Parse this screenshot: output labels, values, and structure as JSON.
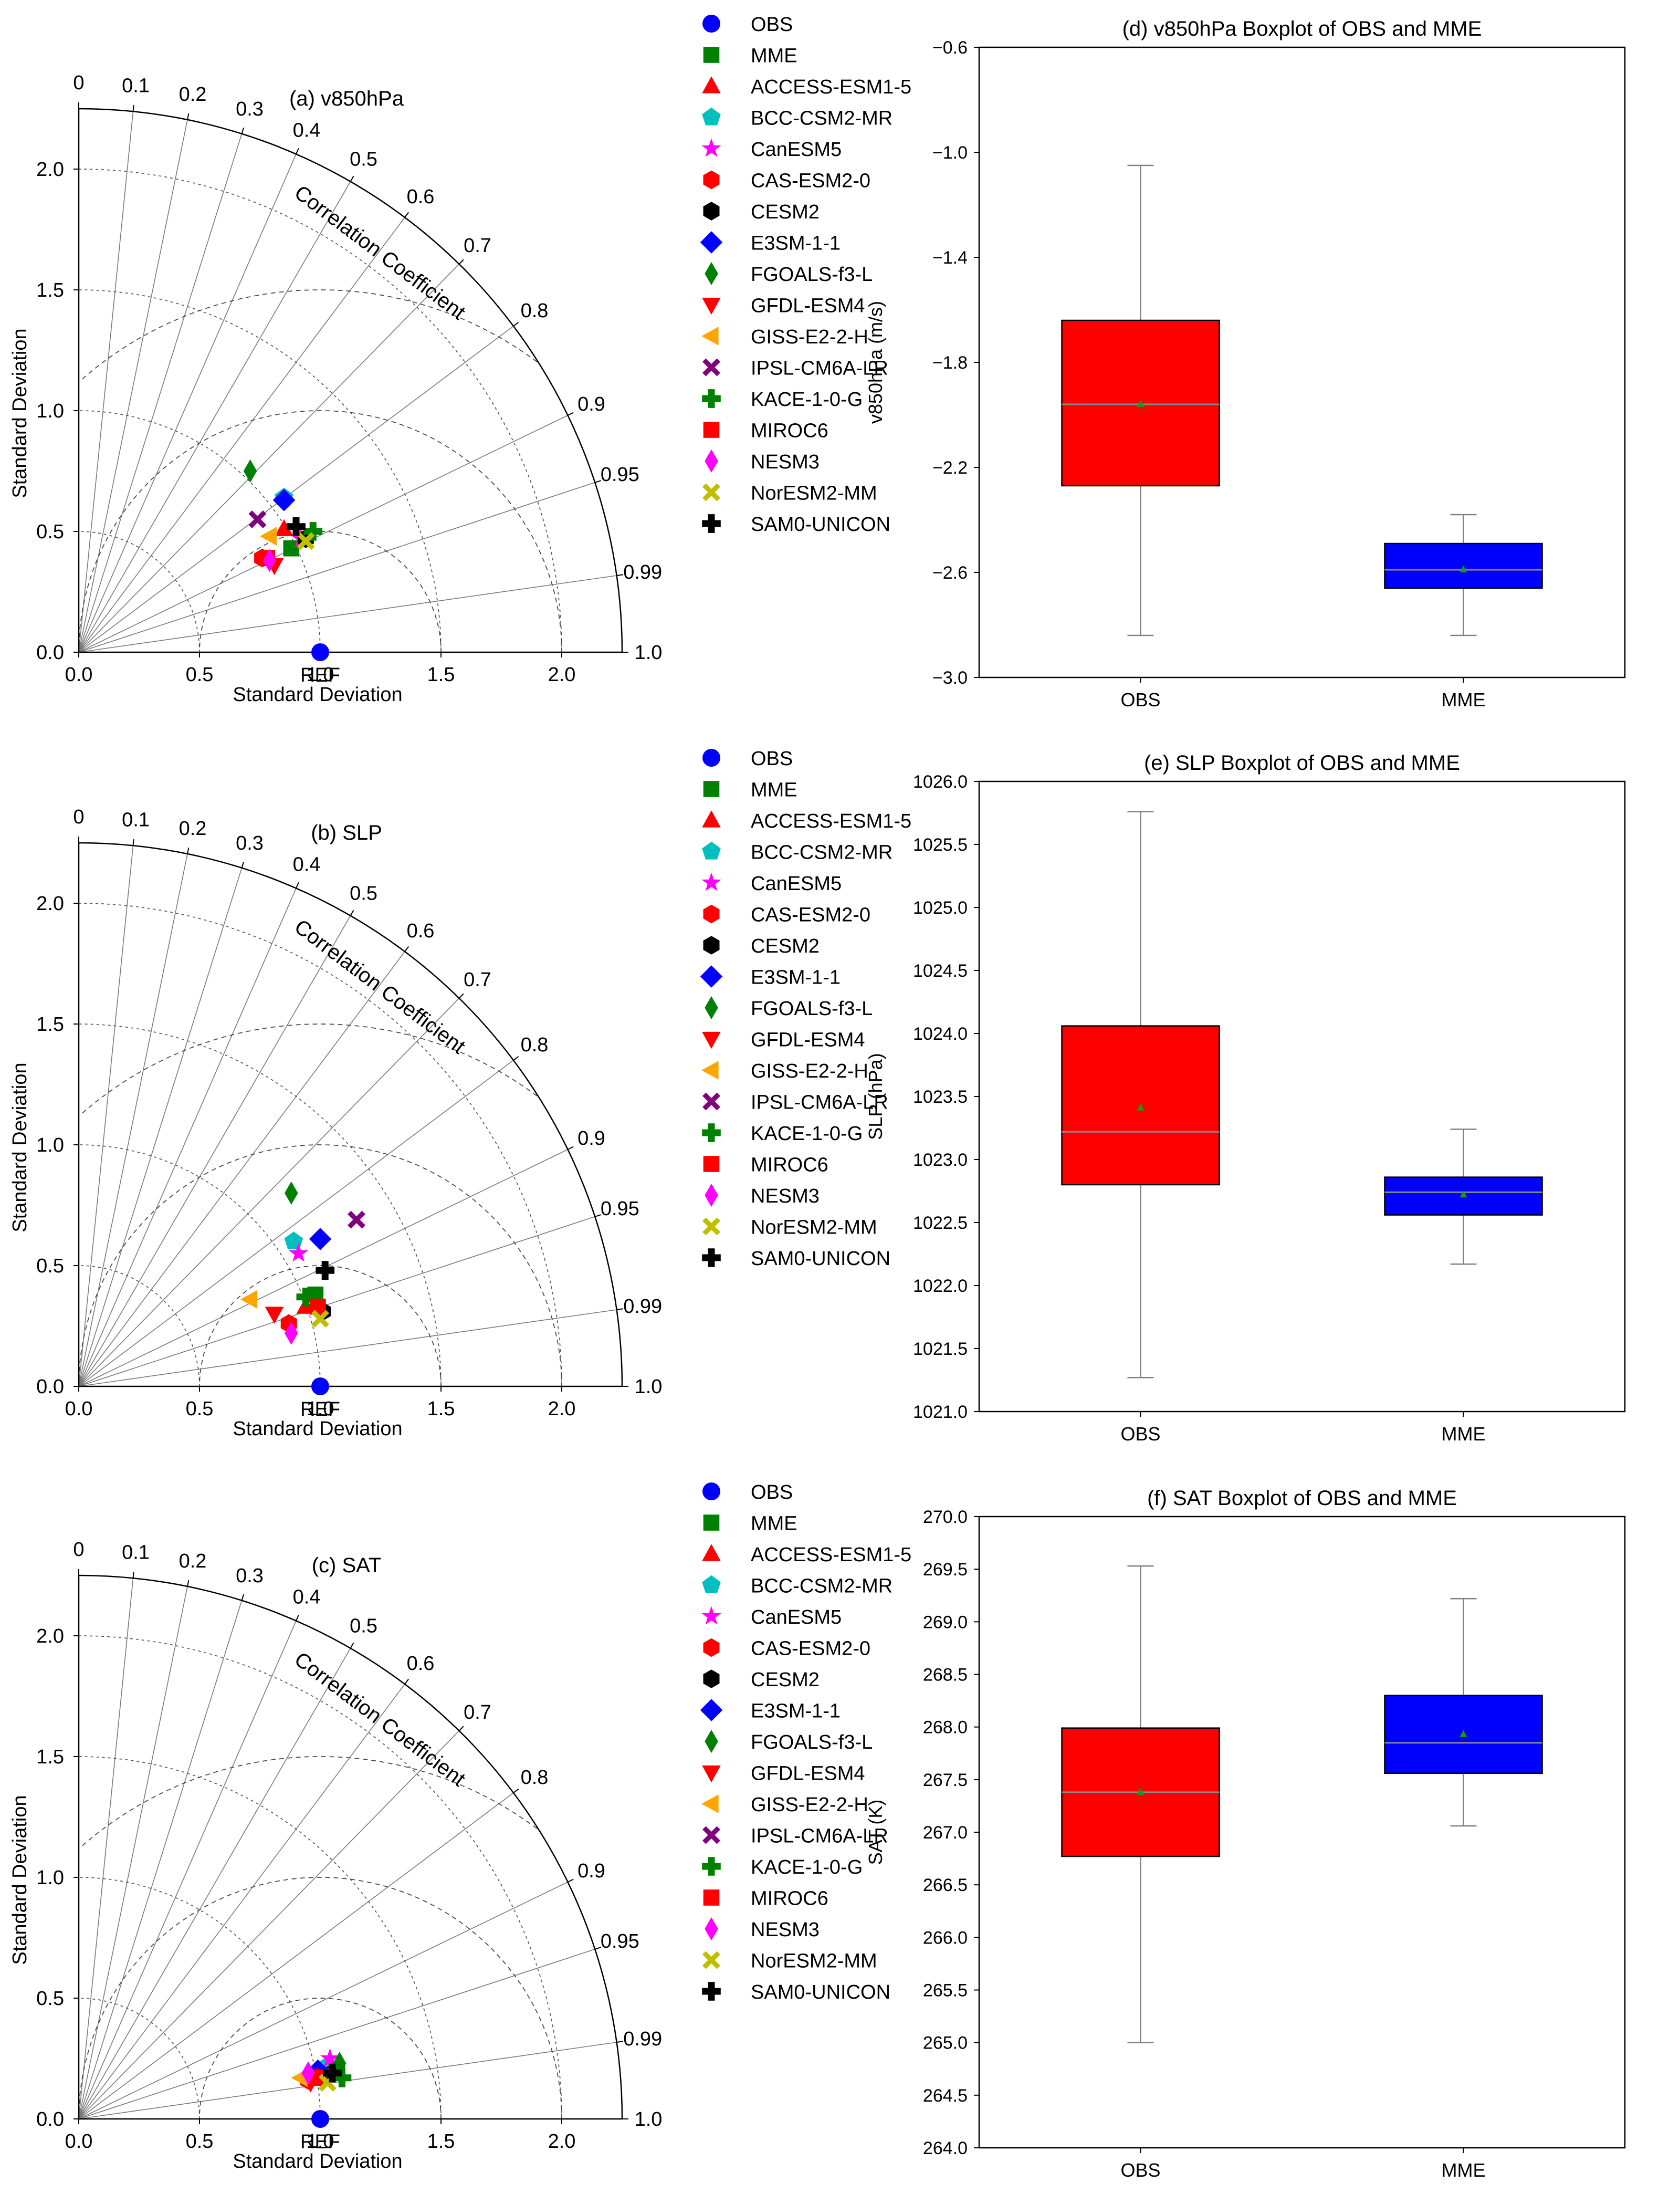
{
  "chart_data": {
    "taylor_common": {
      "axis_label": "Standard Deviation",
      "ref_label": "REF",
      "corr_title": "Correlation Coefficient",
      "sd_ticks": [
        "0.0",
        "0.5",
        "1.0",
        "1.5",
        "2.0"
      ],
      "sd_tick_values": [
        0,
        0.5,
        1.0,
        1.5,
        2.0
      ],
      "corr_ticks": [
        "0",
        "0.1",
        "0.2",
        "0.3",
        "0.4",
        "0.5",
        "0.6",
        "0.7",
        "0.8",
        "0.9",
        "0.95",
        "0.99",
        "1.0"
      ],
      "corr_tick_values": [
        0,
        0.1,
        0.2,
        0.3,
        0.4,
        0.5,
        0.6,
        0.7,
        0.8,
        0.9,
        0.95,
        0.99,
        1.0
      ],
      "sd_max": 2.25,
      "ref_std": 1.0,
      "rms_arcs": [
        0.5,
        1.0,
        1.5
      ]
    },
    "legend": [
      {
        "name": "OBS",
        "marker": "circle",
        "color": "#0000ff"
      },
      {
        "name": "MME",
        "marker": "square",
        "color": "#008000"
      },
      {
        "name": "ACCESS-ESM1-5",
        "marker": "triangle-up",
        "color": "#ff0000"
      },
      {
        "name": "BCC-CSM2-MR",
        "marker": "pentagon",
        "color": "#00bfbf"
      },
      {
        "name": "CanESM5",
        "marker": "star",
        "color": "#ff00ff"
      },
      {
        "name": "CAS-ESM2-0",
        "marker": "hexagon",
        "color": "#ff0000"
      },
      {
        "name": "CESM2",
        "marker": "hexagon",
        "color": "#000000"
      },
      {
        "name": "E3SM-1-1",
        "marker": "diamond",
        "color": "#0000ff"
      },
      {
        "name": "FGOALS-f3-L",
        "marker": "thin-diamond",
        "color": "#008000"
      },
      {
        "name": "GFDL-ESM4",
        "marker": "triangle-down",
        "color": "#ff0000"
      },
      {
        "name": "GISS-E2-2-H",
        "marker": "triangle-left",
        "color": "#ffa500"
      },
      {
        "name": "IPSL-CM6A-LR",
        "marker": "x",
        "color": "#800080"
      },
      {
        "name": "KACE-1-0-G",
        "marker": "plus",
        "color": "#008000"
      },
      {
        "name": "MIROC6",
        "marker": "square",
        "color": "#ff0000"
      },
      {
        "name": "NESM3",
        "marker": "thin-diamond",
        "color": "#ff00ff"
      },
      {
        "name": "NorESM2-MM",
        "marker": "x",
        "color": "#bfbf00"
      },
      {
        "name": "SAM0-UNICON",
        "marker": "plus",
        "color": "#000000"
      }
    ],
    "taylor": [
      {
        "type": "scatter",
        "title": "(a) v850hPa",
        "points": [
          {
            "model": "OBS",
            "x": 1.0,
            "y": 0.0
          },
          {
            "model": "MME",
            "x": 0.88,
            "y": 0.43
          },
          {
            "model": "ACCESS-ESM1-5",
            "x": 0.85,
            "y": 0.51
          },
          {
            "model": "BCC-CSM2-MR",
            "x": 0.85,
            "y": 0.64
          },
          {
            "model": "CanESM5",
            "x": 0.92,
            "y": 0.47
          },
          {
            "model": "CAS-ESM2-0",
            "x": 0.76,
            "y": 0.39
          },
          {
            "model": "CESM2",
            "x": 0.94,
            "y": 0.47
          },
          {
            "model": "E3SM-1-1",
            "x": 0.85,
            "y": 0.63
          },
          {
            "model": "FGOALS-f3-L",
            "x": 0.71,
            "y": 0.75
          },
          {
            "model": "GFDL-ESM4",
            "x": 0.81,
            "y": 0.36
          },
          {
            "model": "GISS-E2-2-H",
            "x": 0.79,
            "y": 0.48
          },
          {
            "model": "IPSL-CM6A-LR",
            "x": 0.74,
            "y": 0.55
          },
          {
            "model": "KACE-1-0-G",
            "x": 0.97,
            "y": 0.5
          },
          {
            "model": "MIROC6",
            "x": 0.78,
            "y": 0.39
          },
          {
            "model": "NESM3",
            "x": 0.79,
            "y": 0.38
          },
          {
            "model": "NorESM2-MM",
            "x": 0.94,
            "y": 0.46
          },
          {
            "model": "SAM0-UNICON",
            "x": 0.9,
            "y": 0.52
          }
        ]
      },
      {
        "type": "scatter",
        "title": "(b) SLP",
        "points": [
          {
            "model": "OBS",
            "x": 1.0,
            "y": 0.0
          },
          {
            "model": "MME",
            "x": 0.98,
            "y": 0.38
          },
          {
            "model": "ACCESS-ESM1-5",
            "x": 0.94,
            "y": 0.33
          },
          {
            "model": "BCC-CSM2-MR",
            "x": 0.89,
            "y": 0.6
          },
          {
            "model": "CanESM5",
            "x": 0.91,
            "y": 0.55
          },
          {
            "model": "CAS-ESM2-0",
            "x": 0.87,
            "y": 0.26
          },
          {
            "model": "CESM2",
            "x": 1.01,
            "y": 0.31
          },
          {
            "model": "E3SM-1-1",
            "x": 1.0,
            "y": 0.61
          },
          {
            "model": "FGOALS-f3-L",
            "x": 0.88,
            "y": 0.8
          },
          {
            "model": "GFDL-ESM4",
            "x": 0.81,
            "y": 0.3
          },
          {
            "model": "GISS-E2-2-H",
            "x": 0.71,
            "y": 0.36
          },
          {
            "model": "IPSL-CM6A-LR",
            "x": 1.15,
            "y": 0.69
          },
          {
            "model": "KACE-1-0-G",
            "x": 0.94,
            "y": 0.37
          },
          {
            "model": "MIROC6",
            "x": 0.99,
            "y": 0.33
          },
          {
            "model": "NESM3",
            "x": 0.88,
            "y": 0.22
          },
          {
            "model": "NorESM2-MM",
            "x": 1.0,
            "y": 0.28
          },
          {
            "model": "SAM0-UNICON",
            "x": 1.02,
            "y": 0.48
          }
        ]
      },
      {
        "type": "scatter",
        "title": "(c) SAT",
        "points": [
          {
            "model": "OBS",
            "x": 1.0,
            "y": 0.0
          },
          {
            "model": "MME",
            "x": 1.07,
            "y": 0.2
          },
          {
            "model": "ACCESS-ESM1-5",
            "x": 0.97,
            "y": 0.18
          },
          {
            "model": "BCC-CSM2-MR",
            "x": 1.03,
            "y": 0.22
          },
          {
            "model": "CanESM5",
            "x": 1.04,
            "y": 0.25
          },
          {
            "model": "CAS-ESM2-0",
            "x": 0.95,
            "y": 0.16
          },
          {
            "model": "CESM2",
            "x": 1.05,
            "y": 0.19
          },
          {
            "model": "E3SM-1-1",
            "x": 0.99,
            "y": 0.2
          },
          {
            "model": "FGOALS-f3-L",
            "x": 1.08,
            "y": 0.23
          },
          {
            "model": "GFDL-ESM4",
            "x": 0.96,
            "y": 0.15
          },
          {
            "model": "GISS-E2-2-H",
            "x": 0.92,
            "y": 0.17
          },
          {
            "model": "IPSL-CM6A-LR",
            "x": 1.01,
            "y": 0.18
          },
          {
            "model": "KACE-1-0-G",
            "x": 1.09,
            "y": 0.17
          },
          {
            "model": "MIROC6",
            "x": 0.98,
            "y": 0.17
          },
          {
            "model": "NESM3",
            "x": 0.95,
            "y": 0.19
          },
          {
            "model": "NorESM2-MM",
            "x": 1.03,
            "y": 0.15
          },
          {
            "model": "SAM0-UNICON",
            "x": 1.05,
            "y": 0.19
          }
        ]
      }
    ],
    "boxplots": [
      {
        "type": "box",
        "title": "(d) v850hPa Boxplot of OBS and MME",
        "ylabel": "v850hPa (m/s)",
        "ylim": [
          -3.0,
          -0.6
        ],
        "yticks": [
          -3.0,
          -2.6,
          -2.2,
          -1.8,
          -1.4,
          -1.0,
          -0.6
        ],
        "ytick_labels": [
          "−3.0",
          "−2.6",
          "−2.2",
          "−1.8",
          "−1.4",
          "−1.0",
          "−0.6"
        ],
        "categories": [
          "OBS",
          "MME"
        ],
        "boxes": [
          {
            "label": "OBS",
            "color": "#ff0000",
            "whislo": -2.84,
            "q1": -2.27,
            "med": -1.96,
            "mean": -1.96,
            "q3": -1.64,
            "whishi": -1.05
          },
          {
            "label": "MME",
            "color": "#0000ff",
            "whislo": -2.84,
            "q1": -2.66,
            "med": -2.59,
            "mean": -2.59,
            "q3": -2.49,
            "whishi": -2.38
          }
        ]
      },
      {
        "type": "box",
        "title": "(e) SLP Boxplot of OBS and MME",
        "ylabel": "SLP (hPa)",
        "ylim": [
          1021.0,
          1026.0
        ],
        "yticks": [
          1021.0,
          1021.5,
          1022.0,
          1022.5,
          1023.0,
          1023.5,
          1024.0,
          1024.5,
          1025.0,
          1025.5,
          1026.0
        ],
        "ytick_labels": [
          "1021.0",
          "1021.5",
          "1022.0",
          "1022.5",
          "1023.0",
          "1023.5",
          "1024.0",
          "1024.5",
          "1025.0",
          "1025.5",
          "1026.0"
        ],
        "categories": [
          "OBS",
          "MME"
        ],
        "boxes": [
          {
            "label": "OBS",
            "color": "#ff0000",
            "whislo": 1021.27,
            "q1": 1022.8,
            "med": 1023.22,
            "mean": 1023.41,
            "q3": 1024.06,
            "whishi": 1025.76
          },
          {
            "label": "MME",
            "color": "#0000ff",
            "whislo": 1022.17,
            "q1": 1022.56,
            "med": 1022.74,
            "mean": 1022.72,
            "q3": 1022.86,
            "whishi": 1023.24
          }
        ]
      },
      {
        "type": "box",
        "title": "(f) SAT Boxplot of OBS and MME",
        "ylabel": "SAT (K)",
        "ylim": [
          264.0,
          270.0
        ],
        "yticks": [
          264.0,
          264.5,
          265.0,
          265.5,
          266.0,
          266.5,
          267.0,
          267.5,
          268.0,
          268.5,
          269.0,
          269.5,
          270.0
        ],
        "ytick_labels": [
          "264.0",
          "264.5",
          "265.0",
          "265.5",
          "266.0",
          "266.5",
          "267.0",
          "267.5",
          "268.0",
          "268.5",
          "269.0",
          "269.5",
          "270.0"
        ],
        "categories": [
          "OBS",
          "MME"
        ],
        "boxes": [
          {
            "label": "OBS",
            "color": "#ff0000",
            "whislo": 265.0,
            "q1": 266.77,
            "med": 267.38,
            "mean": 267.38,
            "q3": 267.99,
            "whishi": 269.53
          },
          {
            "label": "MME",
            "color": "#0000ff",
            "whislo": 267.06,
            "q1": 267.56,
            "med": 267.85,
            "mean": 267.93,
            "q3": 268.3,
            "whishi": 269.22
          }
        ]
      }
    ]
  }
}
